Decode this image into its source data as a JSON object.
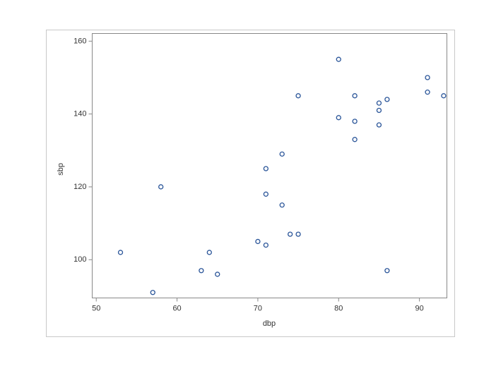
{
  "chart_data": {
    "type": "scatter",
    "x_label": "dbp",
    "y_label": "sbp",
    "x": [
      53,
      57,
      58,
      63,
      64,
      65,
      70,
      71,
      71,
      71,
      73,
      73,
      74,
      75,
      75,
      80,
      80,
      82,
      82,
      82,
      85,
      85,
      85,
      86,
      86,
      91,
      91,
      93
    ],
    "values": [
      102,
      91,
      120,
      97,
      102,
      96,
      105,
      104,
      125,
      118,
      129,
      115,
      107,
      107,
      145,
      155,
      139,
      145,
      138,
      133,
      143,
      141,
      137,
      144,
      97,
      150,
      146,
      145
    ],
    "color": "#2a5599",
    "xlim": [
      49.5,
      93.4
    ],
    "xticks": [
      50,
      60,
      70,
      80,
      90
    ],
    "ylim": [
      89.5,
      162.1
    ],
    "yticks": [
      100,
      120,
      140,
      160
    ]
  }
}
